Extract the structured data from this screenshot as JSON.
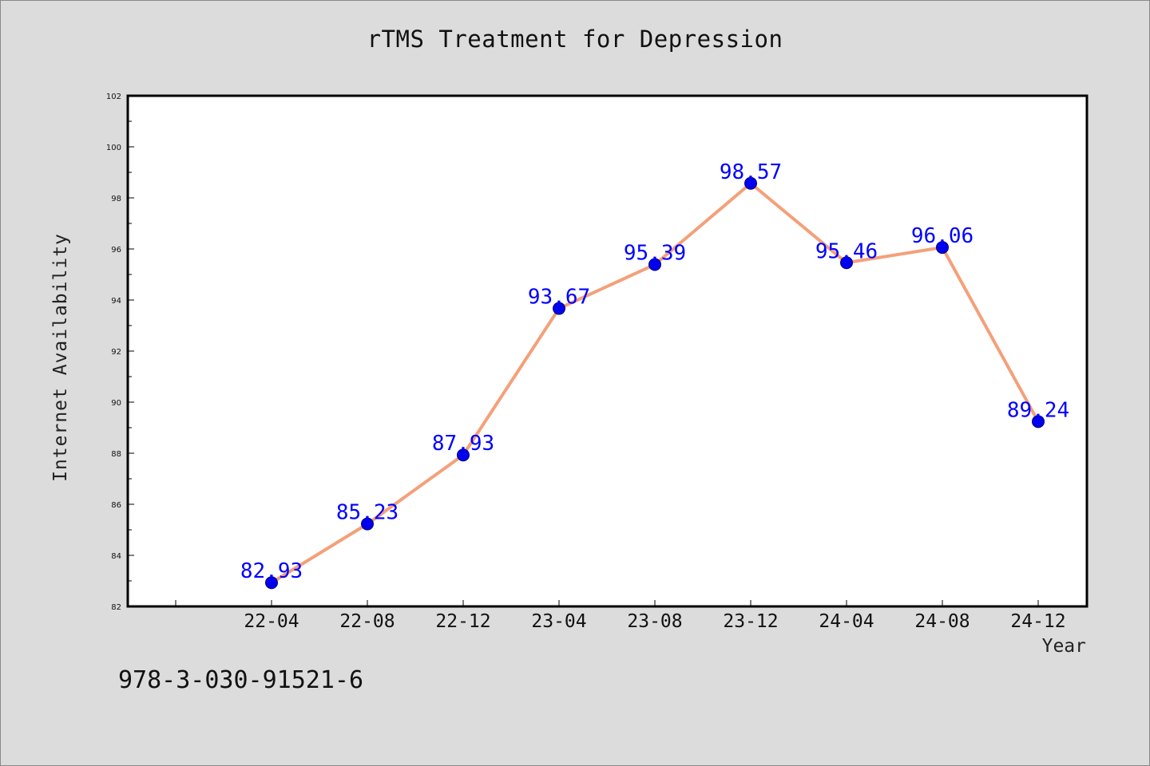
{
  "title": "rTMS Treatment for Depression",
  "footnote": "978-3-030-91521-6",
  "colors": {
    "background": "#dcdcdc",
    "plot_background": "#ffffff",
    "line": "#f4a07a",
    "marker": "#0000ee",
    "data_label": "#0000ff"
  },
  "chart_data": {
    "type": "line",
    "title": "rTMS Treatment for Depression",
    "xlabel": "Year",
    "ylabel": "Internet Availability",
    "categories": [
      "22-04",
      "22-08",
      "22-12",
      "23-04",
      "23-08",
      "23-12",
      "24-04",
      "24-08",
      "24-12"
    ],
    "series": [
      {
        "values": [
          82.93,
          85.23,
          87.93,
          93.67,
          95.39,
          98.57,
          95.46,
          96.06,
          89.24
        ],
        "data_labels": [
          "82.93",
          "85.23",
          "87.93",
          "93.67",
          "95.39",
          "98.57",
          "95.46",
          "96.06",
          "89.24"
        ]
      }
    ],
    "ylim": [
      82,
      102
    ],
    "yticks": [
      "82",
      "84",
      "86",
      "88",
      "90",
      "92",
      "94",
      "96",
      "98",
      "100",
      "102"
    ],
    "grid": false,
    "legend": "none"
  }
}
